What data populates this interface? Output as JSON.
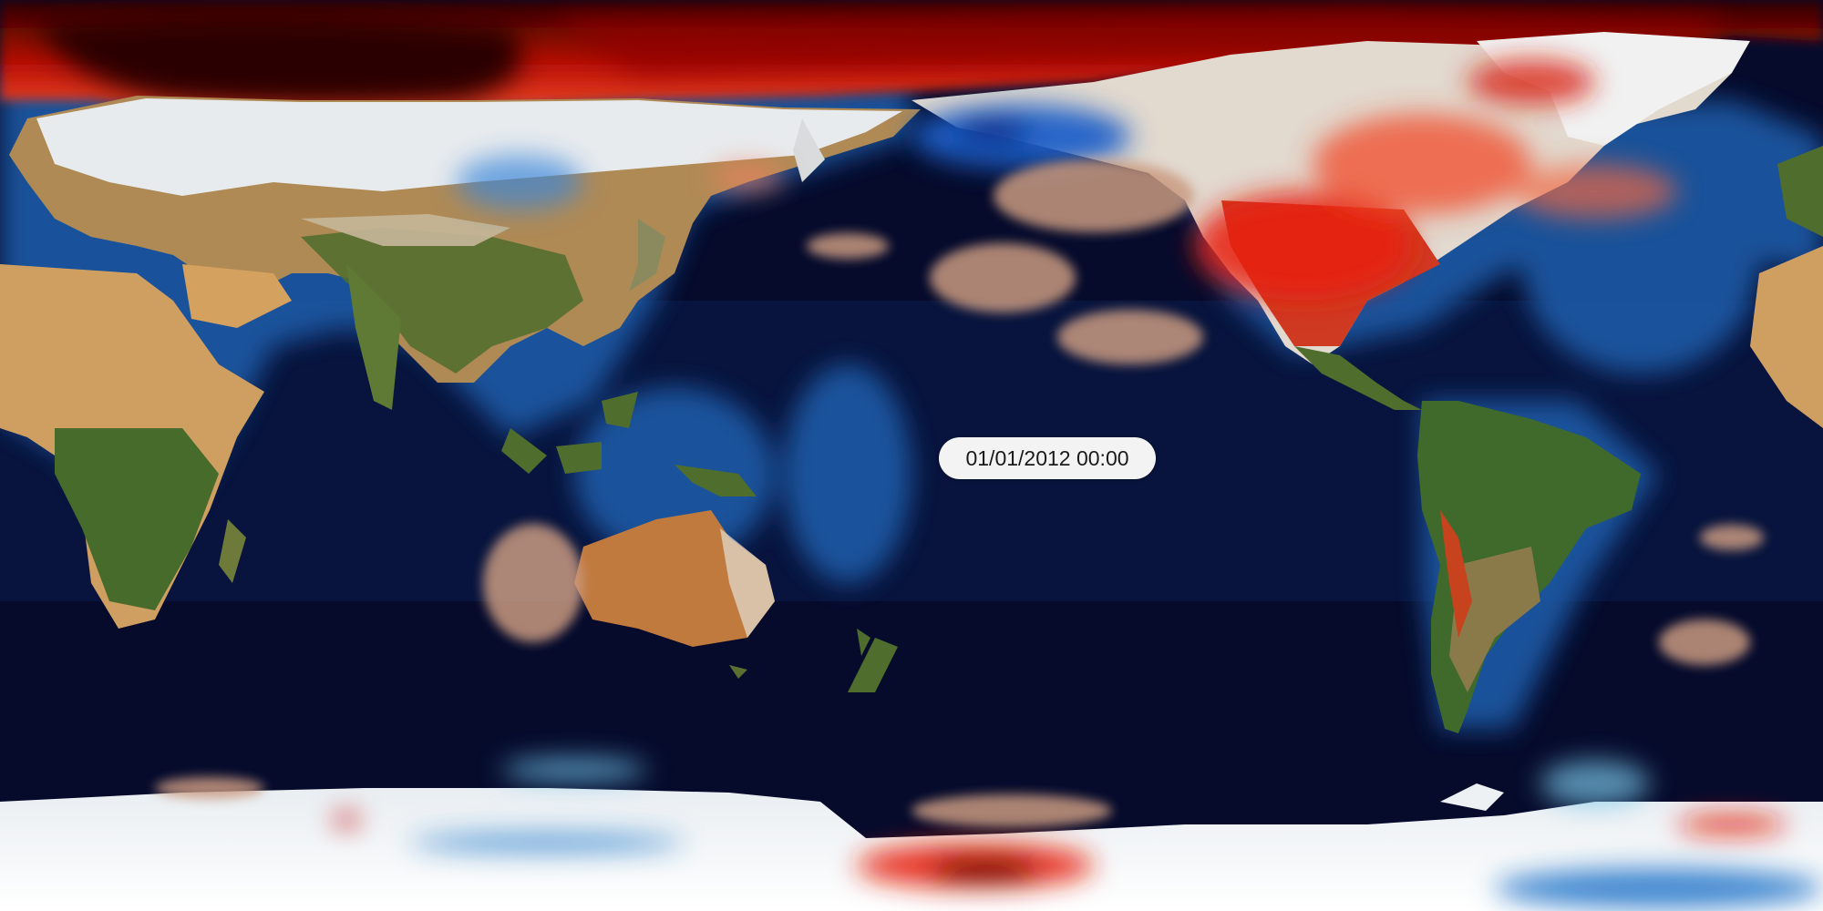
{
  "map": {
    "projection": "equirectangular",
    "basemap": "satellite-relief",
    "center_longitude": 180,
    "overlay": "temperature-anomaly",
    "colors": {
      "ocean_deep": "#050a28",
      "ocean_shelf": "#1f5ea8",
      "land_desert": "#c9a06a",
      "land_forest": "#3f6b2a",
      "ice": "#f4f6f8",
      "warm_anomaly": "#e8220c",
      "hot_anomaly": "#3a0000",
      "cold_anomaly": "#1a5fc8"
    }
  },
  "timestamp": "01/01/2012 00:00"
}
